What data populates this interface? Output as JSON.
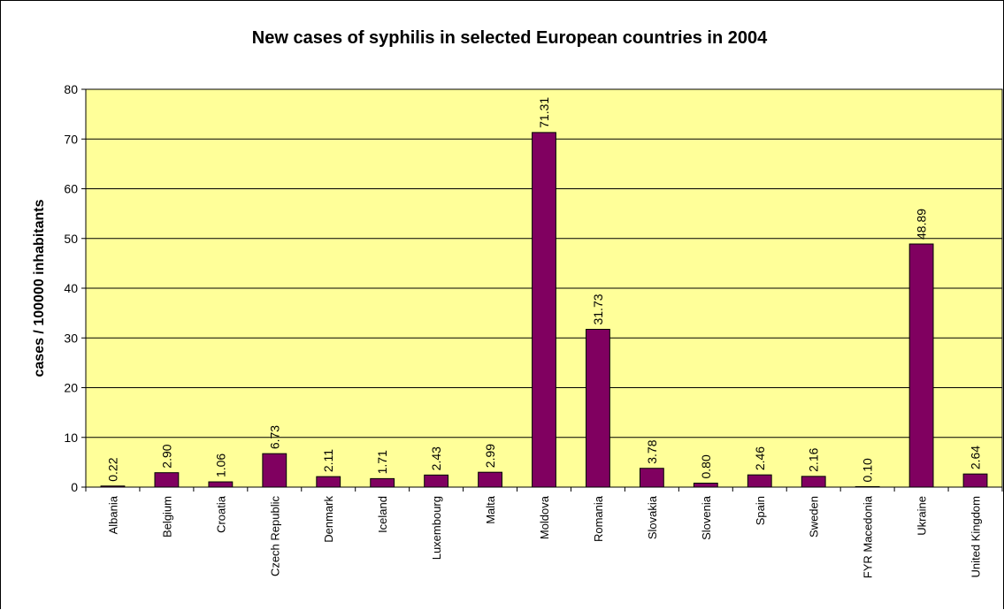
{
  "chart_data": {
    "type": "bar",
    "title": "New cases of syphilis in selected European countries in 2004",
    "xlabel": "",
    "ylabel": "cases / 100000 inhabitants",
    "ylim": [
      0,
      80
    ],
    "yticks": [
      "0",
      "10",
      "20",
      "30",
      "40",
      "50",
      "60",
      "70",
      "80"
    ],
    "grid": true,
    "legend": "none",
    "colors": {
      "bar": "#800060",
      "plot_bg": "#FFFF99",
      "grid": "#000000"
    },
    "categories": [
      "Albania",
      "Belgium",
      "Croatia",
      "Czech Republic",
      "Denmark",
      "Iceland",
      "Luxembourg",
      "Malta",
      "Moldova",
      "Romania",
      "Slovakia",
      "Slovenia",
      "Spain",
      "Sweden",
      "FYR Macedonia",
      "Ukraine",
      "United Kingdom"
    ],
    "values": [
      0.22,
      2.9,
      1.06,
      6.73,
      2.11,
      1.71,
      2.43,
      2.99,
      71.31,
      31.73,
      3.78,
      0.8,
      2.46,
      2.16,
      0.1,
      48.89,
      2.64
    ],
    "data_labels": [
      "0.22",
      "2.90",
      "1.06",
      "6.73",
      "2.11",
      "1.71",
      "2.43",
      "2.99",
      "71.31",
      "31.73",
      "3.78",
      "0.80",
      "2.46",
      "2.16",
      "0.10",
      "48.89",
      "2.64"
    ]
  }
}
